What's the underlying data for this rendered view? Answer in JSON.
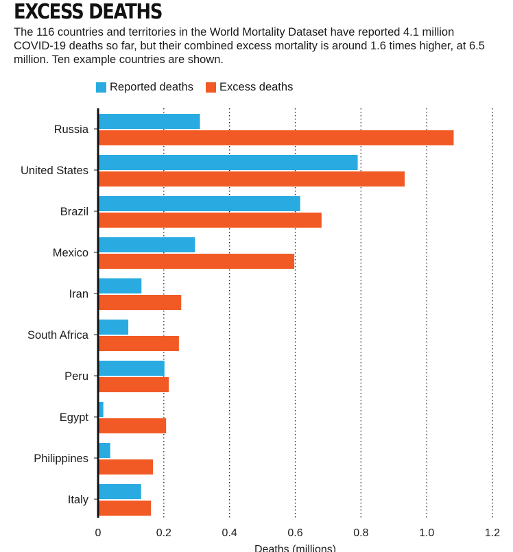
{
  "header": {
    "title": "EXCESS DEATHS",
    "subtitle": "The 116 countries and territories in the World Mortality Dataset have reported 4.1 million COVID-19 deaths so far, but their combined excess mortality is around 1.6 times higher, at 6.5 million. Ten example countries are shown."
  },
  "chart_data": {
    "type": "bar",
    "orientation": "horizontal",
    "title": "EXCESS DEATHS",
    "xlabel": "Deaths (millions)",
    "ylabel": "",
    "xlim": [
      0,
      1.2
    ],
    "xticks": [
      0,
      0.2,
      0.4,
      0.6,
      0.8,
      1.0,
      1.2
    ],
    "xtick_labels": [
      "0",
      "0.2",
      "0.4",
      "0.6",
      "0.8",
      "1.0",
      "1.2"
    ],
    "grid": "vertical dotted",
    "legend_position": "top-left",
    "categories": [
      "Russia",
      "United States",
      "Brazil",
      "Mexico",
      "Iran",
      "South Africa",
      "Peru",
      "Egypt",
      "Philippines",
      "Italy"
    ],
    "series": [
      {
        "name": "Reported deaths",
        "color": "#29abe2",
        "values": [
          0.31,
          0.79,
          0.615,
          0.295,
          0.132,
          0.092,
          0.202,
          0.016,
          0.037,
          0.131
        ]
      },
      {
        "name": "Excess deaths",
        "color": "#f15a24",
        "values": [
          1.082,
          0.933,
          0.68,
          0.597,
          0.253,
          0.246,
          0.215,
          0.207,
          0.167,
          0.161
        ]
      }
    ]
  }
}
